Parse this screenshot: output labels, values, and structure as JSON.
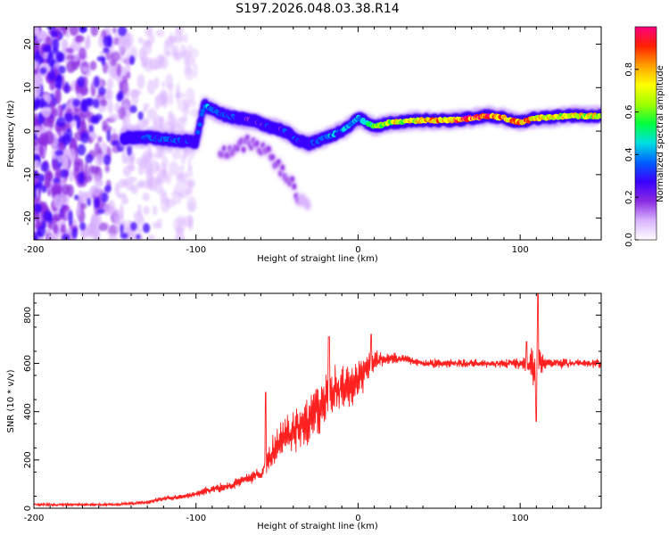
{
  "title": "S197.2026.048.03.38.R14",
  "chart_data": [
    {
      "type": "heatmap",
      "name": "spectrogram",
      "xlabel": "Height of straight line (km)",
      "ylabel": "Frequency (Hz)",
      "xlim": [
        -200,
        150
      ],
      "ylim": [
        -25,
        24
      ],
      "xticks": [
        -200,
        -100,
        0,
        100
      ],
      "xtick_labels": [
        "-200",
        "-100",
        "0",
        "100"
      ],
      "yticks": [
        -20,
        -10,
        0,
        10,
        20
      ],
      "ytick_labels": [
        "-20",
        "-10",
        "0",
        "10",
        "20"
      ],
      "colorbar": {
        "label": "Normalized spectral amplitude",
        "range": [
          0,
          1
        ],
        "ticks": [
          0,
          0.2,
          0.4,
          0.6,
          0.8
        ],
        "tick_labels": [
          "0.0",
          "0.2",
          "0.4",
          "0.6",
          "0.8"
        ],
        "colors": [
          "#ffffff",
          "#d9b3ff",
          "#8a2be2",
          "#3a00ff",
          "#0060ff",
          "#00e0e0",
          "#00ff40",
          "#a0ff00",
          "#ffff00",
          "#ffa000",
          "#ff2000",
          "#ff0080"
        ]
      },
      "ridge": {
        "height_km": [
          -145,
          -130,
          -115,
          -100,
          -95,
          -85,
          -75,
          -65,
          -55,
          -45,
          -38,
          -30,
          -20,
          -10,
          0,
          5,
          10,
          20,
          40,
          60,
          80,
          90,
          100,
          110,
          130,
          150
        ],
        "frequency_hz": [
          -1.5,
          -1.5,
          -2,
          -2.5,
          6,
          4,
          3,
          2.5,
          1,
          0,
          -2,
          -3,
          -1.5,
          0,
          3,
          2,
          1,
          2,
          2.5,
          2.5,
          3.5,
          3,
          2,
          3,
          3.5,
          3.5
        ],
        "amplitude": [
          0.3,
          0.35,
          0.35,
          0.3,
          0.4,
          0.35,
          0.3,
          0.25,
          0.3,
          0.3,
          0.3,
          0.3,
          0.4,
          0.4,
          0.45,
          0.5,
          0.6,
          0.7,
          0.8,
          0.9,
          0.95,
          0.9,
          0.85,
          0.8,
          0.75,
          0.75
        ]
      },
      "branch": {
        "height_km": [
          -85,
          -75,
          -65,
          -55,
          -45,
          -38,
          -30
        ],
        "frequency_hz": [
          -5,
          -3,
          -3,
          -5,
          -10,
          -14,
          -18
        ],
        "amplitude": [
          0.15,
          0.15,
          0.15,
          0.15,
          0.15,
          0.15,
          0.1
        ]
      },
      "noise_region_km": [
        -200,
        -100
      ]
    },
    {
      "type": "line",
      "name": "snr",
      "xlabel": "Height of straight line (km)",
      "ylabel": "SNR (10 * v/v)",
      "xlim": [
        -200,
        150
      ],
      "ylim": [
        0,
        890
      ],
      "xticks": [
        -200,
        -100,
        0,
        100
      ],
      "xtick_labels": [
        "-200",
        "-100",
        "0",
        "100"
      ],
      "yticks": [
        0,
        200,
        400,
        600,
        800
      ],
      "ytick_labels": [
        "0",
        "200",
        "400",
        "600",
        "800"
      ],
      "color": "#ff2020",
      "series_envelope": {
        "x": [
          -200,
          -150,
          -130,
          -120,
          -110,
          -100,
          -90,
          -80,
          -70,
          -60,
          -55,
          -50,
          -40,
          -30,
          -20,
          -15,
          -10,
          0,
          5,
          10,
          15,
          20,
          30,
          40,
          60,
          80,
          100,
          105,
          110,
          115,
          130,
          150
        ],
        "mean": [
          15,
          15,
          25,
          40,
          45,
          60,
          80,
          90,
          120,
          140,
          200,
          260,
          320,
          360,
          450,
          480,
          500,
          520,
          580,
          610,
          620,
          620,
          620,
          600,
          600,
          600,
          600,
          600,
          590,
          600,
          600,
          600
        ],
        "spread": [
          8,
          8,
          12,
          15,
          15,
          20,
          25,
          30,
          30,
          40,
          80,
          110,
          130,
          140,
          160,
          160,
          140,
          130,
          80,
          60,
          40,
          35,
          30,
          25,
          25,
          25,
          30,
          60,
          150,
          40,
          25,
          25
        ]
      },
      "spikes": [
        {
          "x": -57,
          "y": 480
        },
        {
          "x": -18,
          "y": 710
        },
        {
          "x": 8,
          "y": 720
        },
        {
          "x": 104,
          "y": 690
        },
        {
          "x": 111,
          "y": 890
        },
        {
          "x": 110,
          "y": 360
        }
      ]
    }
  ]
}
